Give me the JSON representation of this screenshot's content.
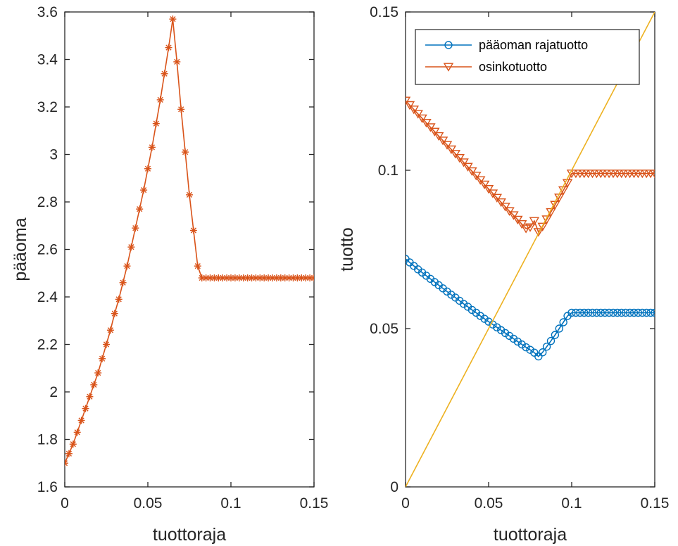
{
  "chart_data": [
    {
      "type": "line",
      "xlabel": "tuottoraja",
      "ylabel": "pääoma",
      "xlim": [
        0,
        0.15
      ],
      "ylim": [
        1.6,
        3.6
      ],
      "xticks": [
        0,
        0.05,
        0.1,
        0.15
      ],
      "xtick_labels": [
        "0",
        "0.05",
        "0.1",
        "0.15"
      ],
      "yticks": [
        1.6,
        1.8,
        2.0,
        2.2,
        2.4,
        2.6,
        2.8,
        3.0,
        3.2,
        3.4,
        3.6
      ],
      "ytick_labels": [
        "1.6",
        "1.8",
        "2",
        "2.2",
        "2.4",
        "2.6",
        "2.8",
        "3",
        "3.2",
        "3.4",
        "3.6"
      ],
      "grid": false,
      "series": [
        {
          "color": "#D95319",
          "marker": "asterisk",
          "x": [
            0,
            0.0025,
            0.005,
            0.0075,
            0.01,
            0.0125,
            0.015,
            0.0175,
            0.02,
            0.0225,
            0.025,
            0.0275,
            0.03,
            0.0325,
            0.035,
            0.0375,
            0.04,
            0.0425,
            0.045,
            0.0475,
            0.05,
            0.0525,
            0.055,
            0.0575,
            0.06,
            0.0625,
            0.065,
            0.0675,
            0.07,
            0.0725,
            0.075,
            0.0775,
            0.08,
            0.0825,
            0.085,
            0.0875,
            0.09,
            0.0925,
            0.095,
            0.0975,
            0.1,
            0.1025,
            0.105,
            0.1075,
            0.11,
            0.1125,
            0.115,
            0.1175,
            0.12,
            0.1225,
            0.125,
            0.1275,
            0.13,
            0.1325,
            0.135,
            0.1375,
            0.14,
            0.1425,
            0.145,
            0.1475,
            0.15
          ],
          "values": [
            1.7,
            1.74,
            1.78,
            1.83,
            1.88,
            1.93,
            1.98,
            2.03,
            2.08,
            2.14,
            2.2,
            2.26,
            2.33,
            2.39,
            2.46,
            2.53,
            2.61,
            2.69,
            2.77,
            2.85,
            2.94,
            3.03,
            3.13,
            3.23,
            3.34,
            3.45,
            3.57,
            3.39,
            3.19,
            3.01,
            2.83,
            2.68,
            2.53,
            2.48,
            2.48,
            2.48,
            2.48,
            2.48,
            2.48,
            2.48,
            2.48,
            2.48,
            2.48,
            2.48,
            2.48,
            2.48,
            2.48,
            2.48,
            2.48,
            2.48,
            2.48,
            2.48,
            2.48,
            2.48,
            2.48,
            2.48,
            2.48,
            2.48,
            2.48,
            2.48,
            2.48
          ]
        }
      ]
    },
    {
      "type": "line",
      "xlabel": "tuottoraja",
      "ylabel": "tuotto",
      "xlim": [
        0,
        0.15
      ],
      "ylim": [
        0,
        0.15
      ],
      "xticks": [
        0,
        0.05,
        0.1,
        0.15
      ],
      "xtick_labels": [
        "0",
        "0.05",
        "0.1",
        "0.15"
      ],
      "yticks": [
        0,
        0.05,
        0.1,
        0.15
      ],
      "ytick_labels": [
        "0",
        "0.05",
        "0.1",
        "0.15"
      ],
      "grid": false,
      "legend_position": "top-right",
      "series": [
        {
          "name": "pääoman rajatuotto",
          "color": "#0072BD",
          "marker": "circle",
          "x": [
            0,
            0.0025,
            0.005,
            0.0075,
            0.01,
            0.0125,
            0.015,
            0.0175,
            0.02,
            0.0225,
            0.025,
            0.0275,
            0.03,
            0.0325,
            0.035,
            0.0375,
            0.04,
            0.0425,
            0.045,
            0.0475,
            0.05,
            0.0525,
            0.055,
            0.0575,
            0.06,
            0.0625,
            0.065,
            0.0675,
            0.07,
            0.0725,
            0.075,
            0.0775,
            0.08,
            0.0825,
            0.085,
            0.0875,
            0.09,
            0.0925,
            0.095,
            0.0975,
            0.1,
            0.1025,
            0.105,
            0.1075,
            0.11,
            0.1125,
            0.115,
            0.1175,
            0.12,
            0.1225,
            0.125,
            0.1275,
            0.13,
            0.1325,
            0.135,
            0.1375,
            0.14,
            0.1425,
            0.145,
            0.1475,
            0.15
          ],
          "values": [
            0.072,
            0.0709,
            0.0698,
            0.0687,
            0.0677,
            0.0667,
            0.0657,
            0.0647,
            0.0637,
            0.0627,
            0.0617,
            0.0607,
            0.0598,
            0.0588,
            0.0578,
            0.0569,
            0.0559,
            0.055,
            0.054,
            0.0531,
            0.0522,
            0.0513,
            0.0504,
            0.0495,
            0.0486,
            0.0477,
            0.0468,
            0.0459,
            0.045,
            0.0441,
            0.0433,
            0.0424,
            0.0412,
            0.0425,
            0.0443,
            0.0461,
            0.048,
            0.05,
            0.052,
            0.054,
            0.055,
            0.055,
            0.055,
            0.055,
            0.055,
            0.055,
            0.055,
            0.055,
            0.055,
            0.055,
            0.055,
            0.055,
            0.055,
            0.055,
            0.055,
            0.055,
            0.055,
            0.055,
            0.055,
            0.055,
            0.055
          ]
        },
        {
          "name": "osinkotuotto",
          "color": "#D95319",
          "marker": "triangle-down",
          "x": [
            0,
            0.0025,
            0.005,
            0.0075,
            0.01,
            0.0125,
            0.015,
            0.0175,
            0.02,
            0.0225,
            0.025,
            0.0275,
            0.03,
            0.0325,
            0.035,
            0.0375,
            0.04,
            0.0425,
            0.045,
            0.0475,
            0.05,
            0.0525,
            0.055,
            0.0575,
            0.06,
            0.0625,
            0.065,
            0.0675,
            0.07,
            0.0725,
            0.075,
            0.0775,
            0.08,
            0.0825,
            0.085,
            0.0875,
            0.09,
            0.0925,
            0.095,
            0.0975,
            0.1,
            0.1025,
            0.105,
            0.1075,
            0.11,
            0.1125,
            0.115,
            0.1175,
            0.12,
            0.1225,
            0.125,
            0.1275,
            0.13,
            0.1325,
            0.135,
            0.1375,
            0.14,
            0.1425,
            0.145,
            0.1475,
            0.15
          ],
          "values": [
            0.122,
            0.1206,
            0.1192,
            0.1178,
            0.1164,
            0.115,
            0.1136,
            0.1122,
            0.1108,
            0.1094,
            0.108,
            0.1066,
            0.1052,
            0.1039,
            0.1025,
            0.1011,
            0.0997,
            0.0983,
            0.0969,
            0.0955,
            0.0941,
            0.0927,
            0.0913,
            0.0899,
            0.0885,
            0.0871,
            0.0858,
            0.0844,
            0.083,
            0.0816,
            0.082,
            0.084,
            0.0805,
            0.0822,
            0.0845,
            0.0868,
            0.0891,
            0.0914,
            0.0937,
            0.096,
            0.099,
            0.099,
            0.099,
            0.099,
            0.099,
            0.099,
            0.099,
            0.099,
            0.099,
            0.099,
            0.099,
            0.099,
            0.099,
            0.099,
            0.099,
            0.099,
            0.099,
            0.099,
            0.099,
            0.099,
            0.099
          ]
        },
        {
          "color": "#EDB120",
          "marker": "none",
          "x": [
            0,
            0.15
          ],
          "values": [
            0,
            0.15
          ]
        }
      ]
    }
  ]
}
